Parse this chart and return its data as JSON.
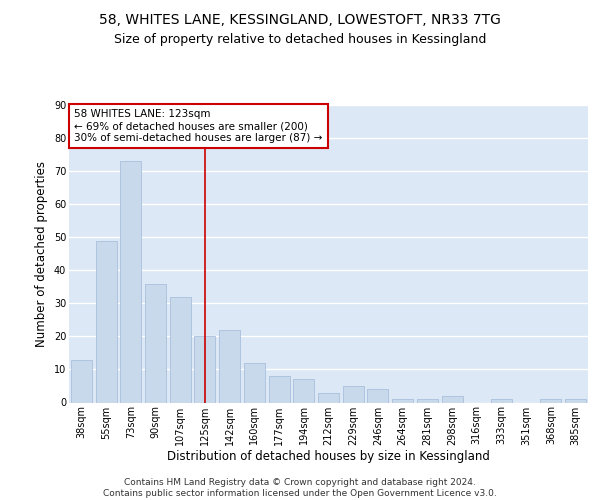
{
  "title_line1": "58, WHITES LANE, KESSINGLAND, LOWESTOFT, NR33 7TG",
  "title_line2": "Size of property relative to detached houses in Kessingland",
  "xlabel": "Distribution of detached houses by size in Kessingland",
  "ylabel": "Number of detached properties",
  "categories": [
    "38sqm",
    "55sqm",
    "73sqm",
    "90sqm",
    "107sqm",
    "125sqm",
    "142sqm",
    "160sqm",
    "177sqm",
    "194sqm",
    "212sqm",
    "229sqm",
    "246sqm",
    "264sqm",
    "281sqm",
    "298sqm",
    "316sqm",
    "333sqm",
    "351sqm",
    "368sqm",
    "385sqm"
  ],
  "values": [
    13,
    49,
    73,
    36,
    32,
    20,
    22,
    12,
    8,
    7,
    3,
    5,
    4,
    1,
    1,
    2,
    0,
    1,
    0,
    1,
    1
  ],
  "bar_color": "#c9d9ec",
  "bar_edge_color": "#a0b8d8",
  "vline_x_index": 5,
  "vline_color": "#cc0000",
  "annotation_text": "58 WHITES LANE: 123sqm\n← 69% of detached houses are smaller (200)\n30% of semi-detached houses are larger (87) →",
  "annotation_box_color": "#ffffff",
  "annotation_box_edge_color": "#cc0000",
  "ylim": [
    0,
    90
  ],
  "yticks": [
    0,
    10,
    20,
    30,
    40,
    50,
    60,
    70,
    80,
    90
  ],
  "footer_text": "Contains HM Land Registry data © Crown copyright and database right 2024.\nContains public sector information licensed under the Open Government Licence v3.0.",
  "background_color": "#dce8f5",
  "grid_color": "#ffffff",
  "title_fontsize": 10,
  "subtitle_fontsize": 9,
  "axis_label_fontsize": 8.5,
  "tick_fontsize": 7,
  "annotation_fontsize": 7.5,
  "footer_fontsize": 6.5
}
